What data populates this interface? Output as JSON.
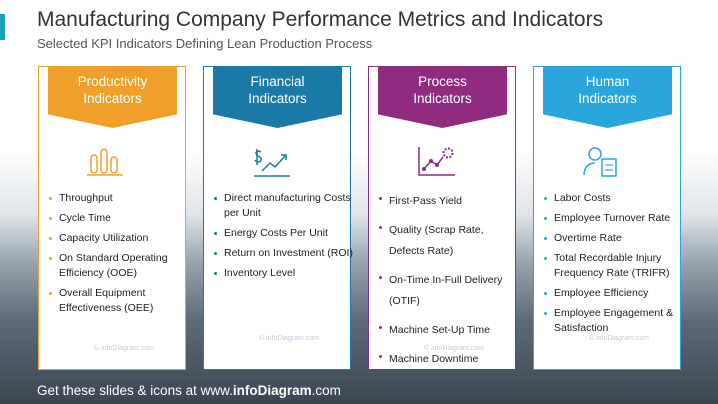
{
  "header": {
    "title": "Manufacturing Company Performance Metrics and Indicators",
    "subtitle": "Selected KPI Indicators Defining Lean Production Process"
  },
  "cards": [
    {
      "title": "Productivity Indicators",
      "items": [
        "Throughput",
        "Cycle Time",
        "Capacity Utilization",
        "On Standard Operating Efficiency (OOE)",
        "Overall Equipment Effectiveness  (OEE)"
      ]
    },
    {
      "title": "Financial Indicators",
      "items": [
        "Direct manufacturing Costs per Unit",
        "Energy Costs Per Unit",
        "Return on Investment (ROI)",
        "Inventory Level"
      ]
    },
    {
      "title": "Process Indicators",
      "items": [
        "First-Pass Yield",
        "Quality (Scrap Rate, Defects Rate)",
        "On-Time In-Full Delivery (OTIF)",
        "Machine Set-Up Time",
        "Machine Downtime"
      ]
    },
    {
      "title": "Human Indicators",
      "items": [
        "Labor Costs",
        "Employee Turnover Rate",
        "Overtime Rate",
        "Total Recordable Injury Frequency Rate (TRIFR)",
        "Employee Efficiency",
        "Employee Engagement & Satisfaction"
      ]
    }
  ],
  "watermark": "© infoDiagram.com",
  "footer": {
    "prefix": "Get these slides & icons at www.",
    "brand": "infoDiagram",
    "suffix": ".com"
  }
}
